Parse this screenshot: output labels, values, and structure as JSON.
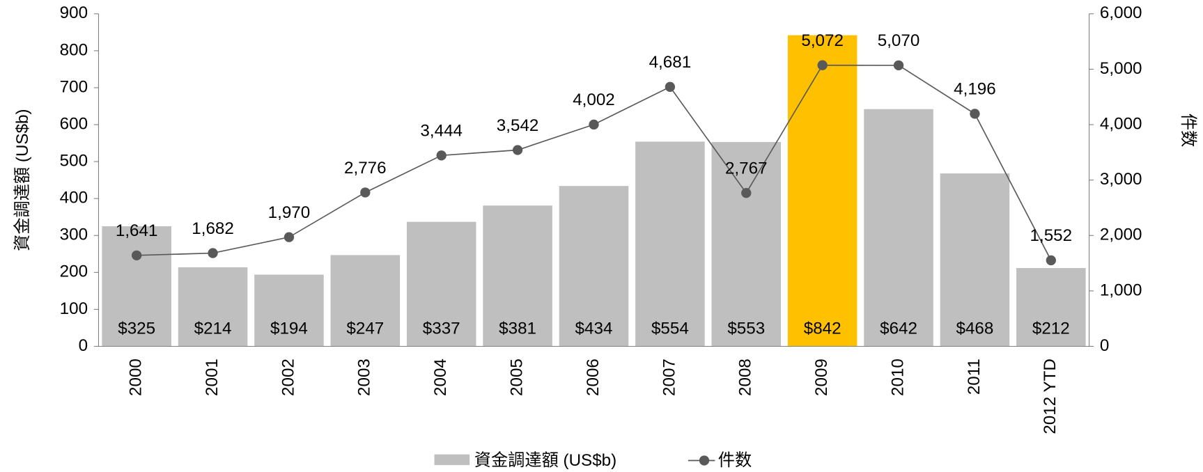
{
  "chart_data": {
    "type": "bar-line",
    "categories": [
      "2000",
      "2001",
      "2002",
      "2003",
      "2004",
      "2005",
      "2006",
      "2007",
      "2008",
      "2009",
      "2010",
      "2011",
      "2012 YTD"
    ],
    "series": [
      {
        "name": "資金調達額 (US$b)",
        "type": "bar",
        "color": "#bfbfbf",
        "colors": [
          "#bfbfbf",
          "#bfbfbf",
          "#bfbfbf",
          "#bfbfbf",
          "#bfbfbf",
          "#bfbfbf",
          "#bfbfbf",
          "#bfbfbf",
          "#bfbfbf",
          "#ffc000",
          "#bfbfbf",
          "#bfbfbf",
          "#bfbfbf"
        ],
        "values": [
          325,
          214,
          194,
          247,
          337,
          381,
          434,
          554,
          553,
          842,
          642,
          468,
          212
        ],
        "value_labels": [
          "$325",
          "$214",
          "$194",
          "$247",
          "$337",
          "$381",
          "$434",
          "$554",
          "$553",
          "$842",
          "$642",
          "$468",
          "$212"
        ]
      },
      {
        "name": "件数",
        "type": "line",
        "axis": "y2",
        "color": "#595959",
        "values": [
          1641,
          1682,
          1970,
          2776,
          3444,
          3542,
          4002,
          4681,
          2767,
          5072,
          5070,
          4196,
          1552
        ],
        "value_labels": [
          "1,641",
          "1,682",
          "1,970",
          "2,776",
          "3,444",
          "3,542",
          "4,002",
          "4,681",
          "2,767",
          "5,072",
          "5,070",
          "4,196",
          "1,552"
        ]
      }
    ],
    "y_label": "資金調達額 (US$b)",
    "y2_label": "件数",
    "ylim": [
      0,
      900
    ],
    "yticks": [
      0,
      100,
      200,
      300,
      400,
      500,
      600,
      700,
      800,
      900
    ],
    "y2lim": [
      0,
      6000
    ],
    "y2ticks": [
      0,
      {
        "value": 1000,
        "label": "1,000"
      },
      {
        "value": 2000,
        "label": "2,000"
      },
      {
        "value": 3000,
        "label": "3,000"
      },
      {
        "value": 4000,
        "label": "4,000"
      },
      {
        "value": 5000,
        "label": "5,000"
      },
      {
        "value": 6000,
        "label": "6,000"
      }
    ],
    "legend": "bottom"
  }
}
